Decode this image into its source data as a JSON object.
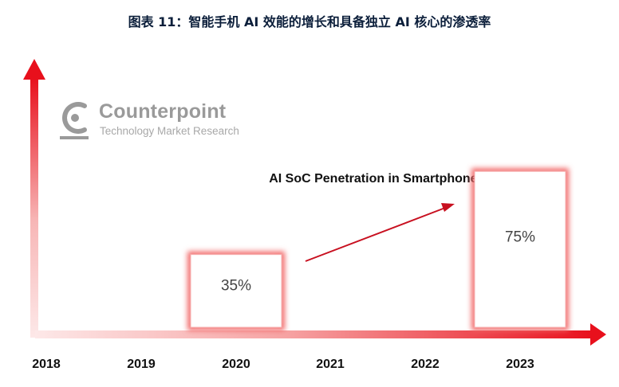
{
  "page": {
    "title": "图表 11：智能手机 AI 效能的增长和具备独立 AI 核心的渗透率"
  },
  "logo": {
    "brand": "Counterpoint",
    "tagline": "Technology Market Research",
    "icon": "counterpoint-logo-icon"
  },
  "colors": {
    "accent": "#e8101c",
    "bar_glow": "#f26b6b",
    "text_dark": "#111111",
    "label_gray": "#444444"
  },
  "chart_data": {
    "type": "bar",
    "title": "AI SoC Penetration in Smartphones (%)",
    "categories": [
      "2018",
      "2019",
      "2020",
      "2021",
      "2022",
      "2023"
    ],
    "series": [
      {
        "values": [
          null,
          null,
          35,
          null,
          null,
          75
        ],
        "labels": [
          "",
          "",
          "35%",
          "",
          "",
          "75%"
        ]
      }
    ],
    "ylim": [
      0,
      100
    ],
    "grid": false,
    "legend": "none",
    "annotations": [
      "trend-arrow-2020-to-2023"
    ]
  }
}
